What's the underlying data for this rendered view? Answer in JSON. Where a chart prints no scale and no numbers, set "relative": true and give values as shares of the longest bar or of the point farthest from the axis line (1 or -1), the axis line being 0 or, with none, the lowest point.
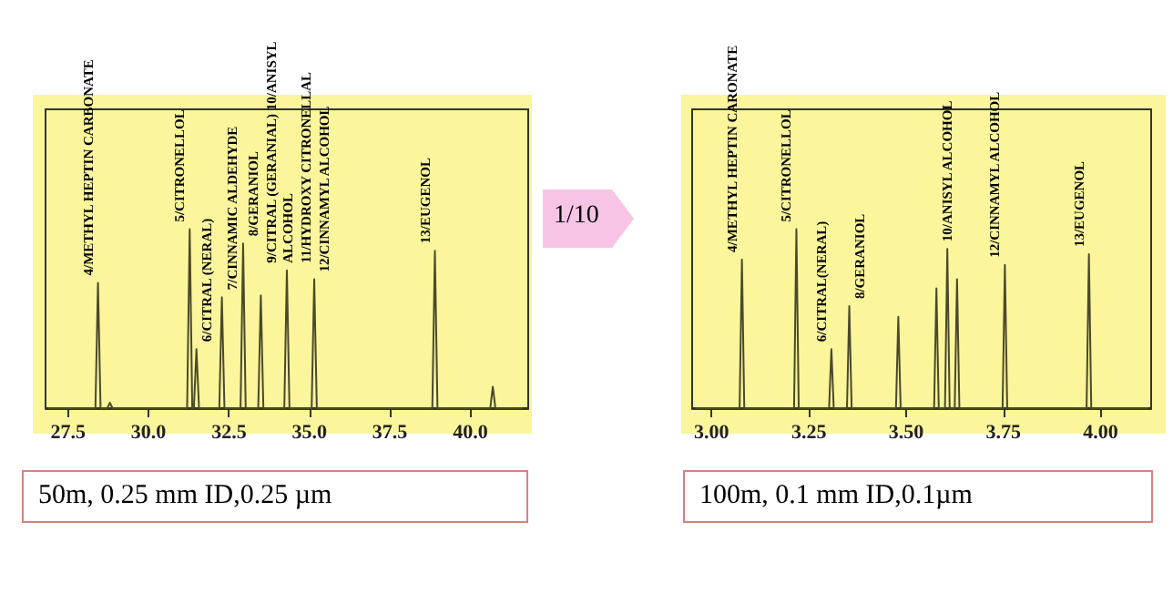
{
  "chart_data": [
    {
      "type": "line",
      "relative": true,
      "color": "#4a4a2a",
      "x": [
        26.9,
        28.35,
        28.43,
        28.51,
        28.72,
        28.8,
        28.88,
        31.2,
        31.28,
        31.36,
        31.41,
        31.49,
        31.57,
        32.2,
        32.28,
        32.36,
        32.86,
        32.94,
        33.02,
        33.41,
        33.49,
        33.57,
        34.22,
        34.3,
        34.38,
        35.07,
        35.15,
        35.23,
        38.82,
        38.9,
        38.98,
        40.62,
        40.7,
        40.78,
        41.6
      ],
      "values": [
        0,
        0,
        0.7,
        0,
        0,
        0.03,
        0,
        0,
        1,
        0,
        0,
        0.33,
        0,
        0,
        0.62,
        0,
        0,
        0.92,
        0,
        0,
        0.63,
        0,
        0,
        0.77,
        0,
        0,
        0.72,
        0,
        0,
        0.88,
        0,
        0,
        0.12,
        0,
        0
      ],
      "xlim": [
        26.8,
        41.8
      ],
      "xticks": [
        27.5,
        {
          "value": 30,
          "label": "30.0"
        },
        32.5,
        {
          "value": 35,
          "label": "35.0"
        },
        37.5,
        {
          "value": 40,
          "label": "40.0"
        }
      ],
      "annotations": [
        "50m, 0.25 mm ID,0.25 µm",
        "1/10",
        {
          "text": "4/METHYL HEPTIN CARBONATE",
          "x": 28.43,
          "y": 0.7
        },
        {
          "text": "5/CITRONELLOL",
          "x": 31.28,
          "y": 1
        },
        {
          "text": "6/CITRAL (NERAL)",
          "x": 31.49,
          "y": 0.33
        },
        {
          "text": "7/CINNAMIC ALDEHYDE",
          "x": 32.28,
          "y": 0.62
        },
        {
          "text": "8/GERANIOL",
          "x": 32.94,
          "y": 0.92
        },
        {
          "text": "9/CITRAL (GERANIAL) 10/ANISYL ALCOHOL",
          "x": 33.49,
          "y": 0.63
        },
        {
          "text": "11/HYDROXY CITRONELLAL",
          "x": 34.3,
          "y": 0.77
        },
        {
          "text": "12/CINNAMYL ALCOHOL",
          "x": 35.15,
          "y": 0.72
        },
        {
          "text": "13/EUGENOL",
          "x": 38.9,
          "y": 0.88
        }
      ]
    },
    {
      "type": "line",
      "relative": true,
      "color": "#4a4a2a",
      "x": [
        2.96,
        3.072,
        3.078,
        3.084,
        3.212,
        3.218,
        3.224,
        3.302,
        3.308,
        3.314,
        3.348,
        3.354,
        3.36,
        3.474,
        3.48,
        3.486,
        3.572,
        3.578,
        3.584,
        3.6,
        3.606,
        3.612,
        3.625,
        3.631,
        3.637,
        3.748,
        3.754,
        3.76,
        3.964,
        3.97,
        3.976,
        4.12
      ],
      "values": [
        0,
        0,
        0.83,
        0,
        0,
        1,
        0,
        0,
        0.33,
        0,
        0,
        0.57,
        0,
        0,
        0.51,
        0,
        0,
        0.67,
        0,
        0,
        0.89,
        0,
        0,
        0.72,
        0,
        0,
        0.8,
        0,
        0,
        0.86,
        0,
        0
      ],
      "xlim": [
        2.95,
        4.13
      ],
      "xticks": [
        {
          "value": 3,
          "label": "3.00"
        },
        3.25,
        {
          "value": 3.5,
          "label": "3.50"
        },
        3.75,
        {
          "value": 4,
          "label": "4.00"
        }
      ],
      "annotations": [
        "100m, 0.1 mm ID,0.1µm",
        {
          "text": "4/METHYL HEPTIN CARONATE",
          "x": 3.078,
          "y": 0.83
        },
        {
          "text": "5/CITRONELLOL",
          "x": 3.218,
          "y": 1
        },
        {
          "text": "6/CITRAL(NERAL)",
          "x": 3.308,
          "y": 0.33
        },
        {
          "text": "8/GERANIOL",
          "x": 3.354,
          "y": 0.57
        },
        {
          "text": "10/ANISYL ALCOHOL",
          "x": 3.631,
          "y": 0.72
        },
        {
          "text": "12/CINNAMYL ALCOHOL",
          "x": 3.754,
          "y": 0.8
        },
        {
          "text": "13/EUGENOL",
          "x": 3.97,
          "y": 0.86
        }
      ]
    }
  ]
}
